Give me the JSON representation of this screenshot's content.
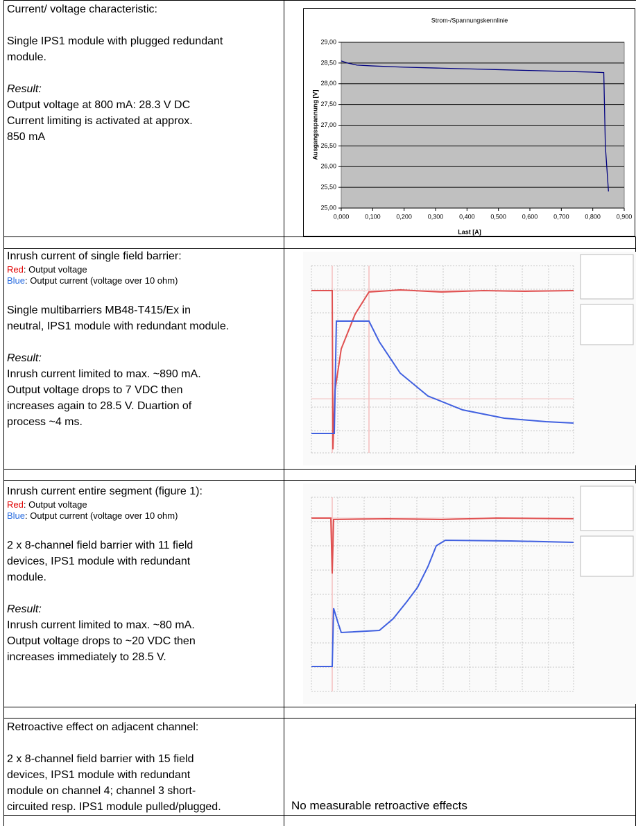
{
  "table": {
    "rows": [
      {
        "heading": "Current/ voltage characteristic:",
        "description": [
          "Single IPS1 module with plugged redundant",
          "module."
        ],
        "result_label": "Result:",
        "result": [
          "Output voltage at 800 mA: 28.3 V DC",
          "Current limiting is activated at approx.",
          "850 mA"
        ]
      },
      {
        "heading": "Inrush current of single field barrier:",
        "legend": [
          {
            "key": "Red",
            "text": ": Output voltage"
          },
          {
            "key": "Blue",
            "text": ": Output current (voltage over 10 ohm)"
          }
        ],
        "description": [
          "Single multibarriers MB48-T415/Ex in",
          "neutral, IPS1 module with redundant module."
        ],
        "result_label": "Result:",
        "result": [
          "Inrush current limited to max. ~890 mA.",
          "Output voltage drops to 7 VDC then",
          "increases again to 28.5 V. Duartion of",
          "process ~4 ms."
        ]
      },
      {
        "heading": "Inrush current entire segment (figure 1):",
        "legend": [
          {
            "key": "Red",
            "text": ": Output voltage"
          },
          {
            "key": "Blue",
            "text": ": Output current (voltage over 10 ohm)"
          }
        ],
        "description": [
          "2 x 8-channel field barrier with 11 field",
          "devices, IPS1 module with redundant",
          "module."
        ],
        "result_label": "Result:",
        "result": [
          "Inrush current limited to max. ~80 mA.",
          "Output voltage drops to ~20 VDC then",
          "increases immediately to 28.5 V."
        ]
      },
      {
        "heading": "Retroactive effect on adjacent channel:",
        "description": [
          "2 x 8-channel field barrier with 15 field",
          "devices, IPS1 module with redundant",
          "module on channel 4; channel 3 short-",
          "circuited resp. IPS1 module pulled/plugged."
        ],
        "outcome": "No measurable retroactive effects"
      }
    ]
  },
  "chart_data": {
    "type": "line",
    "title": "Strom-/Spannungskennlinie",
    "x_label": "Last [A]",
    "y_label": "Ausgangsspannung [V]",
    "x": [
      0,
      0.02,
      0.05,
      0.1,
      0.2,
      0.3,
      0.4,
      0.5,
      0.6,
      0.7,
      0.8,
      0.835,
      0.84,
      0.85
    ],
    "values": [
      28.55,
      28.5,
      28.45,
      28.43,
      28.4,
      28.38,
      28.36,
      28.34,
      28.32,
      28.3,
      28.28,
      28.27,
      26.5,
      25.4
    ],
    "color": "#000080",
    "plot_background": "#c0c0c0",
    "grid": true,
    "xlim": [
      0,
      0.9
    ],
    "ylim": [
      25,
      29
    ],
    "xticks": [
      {
        "value": 0,
        "label": "0,000"
      },
      {
        "value": 0.1,
        "label": "0,100"
      },
      {
        "value": 0.2,
        "label": "0,200"
      },
      {
        "value": 0.3,
        "label": "0,300"
      },
      {
        "value": 0.4,
        "label": "0,400"
      },
      {
        "value": 0.5,
        "label": "0,500"
      },
      {
        "value": 0.6,
        "label": "0,600"
      },
      {
        "value": 0.7,
        "label": "0,700"
      },
      {
        "value": 0.8,
        "label": "0,800"
      },
      {
        "value": 0.9,
        "label": "0,900"
      }
    ],
    "yticks": [
      {
        "value": 25,
        "label": "25,00"
      },
      {
        "value": 25.5,
        "label": "25,50"
      },
      {
        "value": 26,
        "label": "26,00"
      },
      {
        "value": 26.5,
        "label": "26,50"
      },
      {
        "value": 27,
        "label": "27,00"
      },
      {
        "value": 27.5,
        "label": "27,50"
      },
      {
        "value": 28,
        "label": "28,00"
      },
      {
        "value": 28.5,
        "label": "28,50"
      },
      {
        "value": 29,
        "label": "29,00"
      }
    ]
  }
}
